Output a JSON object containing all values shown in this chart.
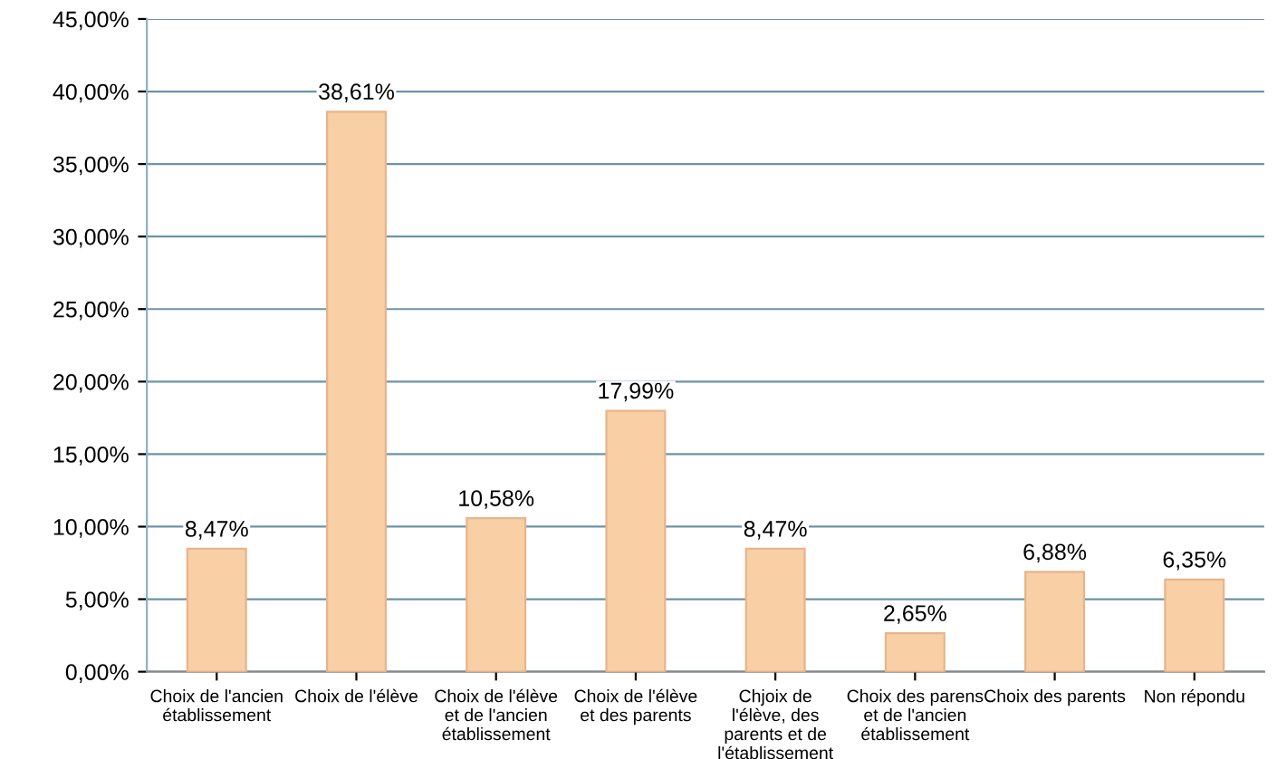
{
  "chart_data": {
    "type": "bar",
    "categories": [
      "Choix de l'ancien établissement",
      "Choix de l'élève",
      "Choix de l'élève et de l'ancien établissement",
      "Choix de l'élève et des parents",
      "Chjoix de l'élève, des parents et de l'établissement",
      "Choix des parens et de l'ancien établissement",
      "Choix des parents",
      "Non répondu"
    ],
    "values": [
      8.47,
      38.61,
      10.58,
      17.99,
      8.47,
      2.65,
      6.88,
      6.35
    ],
    "value_labels": [
      "8,47%",
      "38,61%",
      "10,58%",
      "17,99%",
      "8,47%",
      "2,65%",
      "6,88%",
      "6,35%"
    ],
    "color": "#f9cfa6",
    "ylim": [
      0,
      45
    ],
    "yticks": [
      {
        "value": 0,
        "label": "0,00%"
      },
      {
        "value": 5,
        "label": "5,00%"
      },
      {
        "value": 10,
        "label": "10,00%"
      },
      {
        "value": 15,
        "label": "15,00%"
      },
      {
        "value": 20,
        "label": "20,00%"
      },
      {
        "value": 25,
        "label": "25,00%"
      },
      {
        "value": 30,
        "label": "30,00%"
      },
      {
        "value": 35,
        "label": "35,00%"
      },
      {
        "value": 40,
        "label": "40,00%"
      },
      {
        "value": 45,
        "label": "45,00%"
      }
    ],
    "grid": "y"
  }
}
